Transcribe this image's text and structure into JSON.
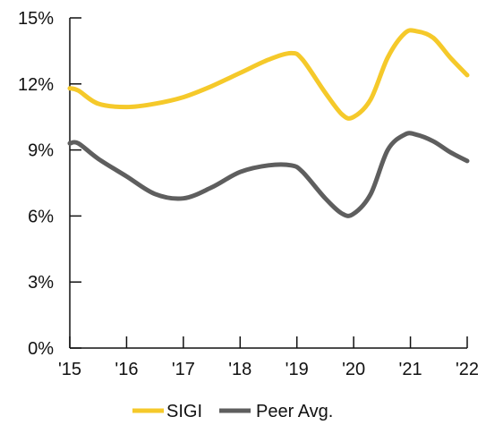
{
  "chart_data": {
    "type": "line",
    "categories": [
      "'15",
      "'16",
      "'17",
      "'18",
      "'19",
      "'20",
      "'21",
      "'22"
    ],
    "x": [
      2015,
      2016,
      2017,
      2018,
      2019,
      2020,
      2021,
      2022
    ],
    "ylim": [
      0,
      15
    ],
    "yticks": [
      0,
      3,
      6,
      9,
      12,
      15
    ],
    "ytick_labels": [
      "0%",
      "3%",
      "6%",
      "9%",
      "12%",
      "15%"
    ],
    "series": [
      {
        "name": "SIGI",
        "color": "#F5C92A",
        "points": [
          [
            2015.0,
            11.8
          ],
          [
            2015.15,
            11.7
          ],
          [
            2015.5,
            11.1
          ],
          [
            2016.0,
            10.95
          ],
          [
            2016.5,
            11.1
          ],
          [
            2017.0,
            11.4
          ],
          [
            2017.5,
            11.9
          ],
          [
            2018.0,
            12.5
          ],
          [
            2018.5,
            13.1
          ],
          [
            2018.9,
            13.4
          ],
          [
            2019.1,
            13.1
          ],
          [
            2019.5,
            11.6
          ],
          [
            2019.8,
            10.6
          ],
          [
            2020.0,
            10.5
          ],
          [
            2020.3,
            11.3
          ],
          [
            2020.6,
            13.2
          ],
          [
            2020.9,
            14.3
          ],
          [
            2021.1,
            14.4
          ],
          [
            2021.4,
            14.1
          ],
          [
            2021.7,
            13.2
          ],
          [
            2022.0,
            12.4
          ]
        ]
      },
      {
        "name": "Peer Avg.",
        "color": "#5E5E5E",
        "points": [
          [
            2015.0,
            9.3
          ],
          [
            2015.15,
            9.3
          ],
          [
            2015.5,
            8.6
          ],
          [
            2016.0,
            7.8
          ],
          [
            2016.5,
            7.0
          ],
          [
            2017.0,
            6.8
          ],
          [
            2017.5,
            7.3
          ],
          [
            2018.0,
            8.0
          ],
          [
            2018.5,
            8.3
          ],
          [
            2018.9,
            8.3
          ],
          [
            2019.1,
            8.0
          ],
          [
            2019.5,
            6.8
          ],
          [
            2019.8,
            6.1
          ],
          [
            2020.0,
            6.1
          ],
          [
            2020.3,
            7.0
          ],
          [
            2020.6,
            9.0
          ],
          [
            2020.9,
            9.7
          ],
          [
            2021.1,
            9.7
          ],
          [
            2021.4,
            9.4
          ],
          [
            2021.7,
            8.9
          ],
          [
            2022.0,
            8.5
          ]
        ]
      }
    ],
    "grid": false,
    "legend": {
      "position": "bottom-center",
      "entries": [
        "SIGI",
        "Peer Avg."
      ]
    }
  },
  "legend": {
    "sigi_label": "SIGI",
    "peer_label": "Peer Avg."
  }
}
